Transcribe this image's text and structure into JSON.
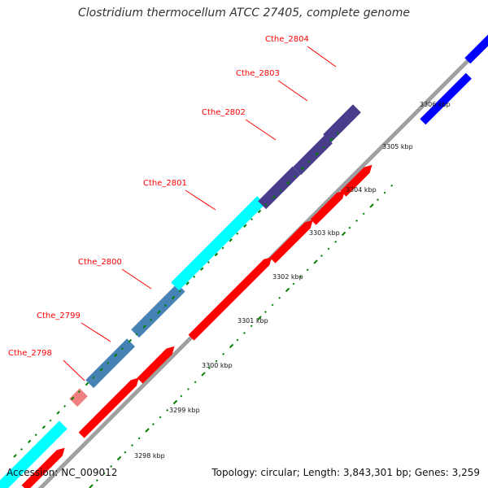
{
  "title": "Clostridium thermocellum ATCC 27405, complete genome",
  "footer": {
    "accession": "Accession: NC_009012",
    "topology": "Topology: circular; Length: 3,843,301 bp; Genes: 3,259"
  },
  "colors": {
    "backbone": "#a0a0a0",
    "forward_cds": "#ff0000",
    "reverse_cds": "#0000ff",
    "ticks_major": "#008000",
    "label": "#ff0000"
  },
  "genes": [
    {
      "name": "Cthe_2798",
      "color": "#f08080"
    },
    {
      "name": "Cthe_2799",
      "color": "#4682b4"
    },
    {
      "name": "Cthe_2800",
      "color": "#4682b4"
    },
    {
      "name": "Cthe_2801",
      "color": "#00ffff"
    },
    {
      "name": "Cthe_2802",
      "color": "#483d8b"
    },
    {
      "name": "Cthe_2803",
      "color": "#483d8b"
    },
    {
      "name": "Cthe_2804",
      "color": "#483d8b"
    }
  ],
  "scale_labels": [
    "3298 kbp",
    "3299 kbp",
    "3300 kbp",
    "3301 kbp",
    "3302 kbp",
    "3303 kbp",
    "3304 kbp",
    "3305 kbp",
    "3306 kbp"
  ]
}
